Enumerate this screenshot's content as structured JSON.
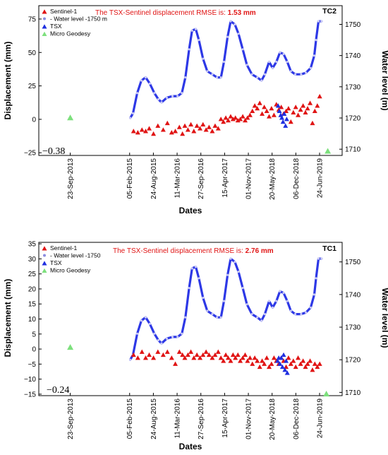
{
  "chart_data": [
    {
      "type": "scatter",
      "panel_label": "TC2",
      "rmse_prefix": "The TSX-Sentinel displacement RMSE is: ",
      "rmse_value": "1.53 mm",
      "offset_label": "−0.38",
      "xlabel": "Dates",
      "ylabel": "Displacement (mm)",
      "y2label": "Water level (m)",
      "xlim": [
        "2013-01-01",
        "2019-12-31"
      ],
      "ylim": [
        -27,
        85
      ],
      "y2lim": [
        1708,
        1756
      ],
      "yticks": [
        "−25",
        "0",
        "25",
        "50",
        "75"
      ],
      "y2ticks": [
        "1710",
        "1720",
        "1730",
        "1740",
        "1750"
      ],
      "xtick_dates": [
        "2013-09-23",
        "2015-02-05",
        "2015-08-24",
        "2016-03-11",
        "2016-09-27",
        "2017-04-15",
        "2017-11-01",
        "2018-05-20",
        "2018-12-06",
        "2019-06-24"
      ],
      "xtick_labels": [
        "23-Sep-2013",
        "05-Feb-2015",
        "24-Aug-2015",
        "11-Mar-2016",
        "27-Sep-2016",
        "15-Apr-2017",
        "01-Nov-2017",
        "20-May-2018",
        "06-Dec-2018",
        "24-Jun-2019"
      ],
      "legend": [
        {
          "label": "Sentinel-1",
          "color": "#e01414",
          "marker": "triangle"
        },
        {
          "label": "- Water level -1750 m",
          "color": "#8c8ce0",
          "marker": "circle"
        },
        {
          "label": "TSX",
          "color": "#1f2fe0",
          "marker": "triangle"
        },
        {
          "label": "Micro Geodesy",
          "color": "#7de07d",
          "marker": "triangle"
        }
      ],
      "water_level_curve": {
        "name": "Water level -1750 m",
        "axis": "right",
        "color": "#2d38e6",
        "points": [
          [
            "2015-02-10",
            1720
          ],
          [
            "2015-03-05",
            1721.5
          ],
          [
            "2015-04-10",
            1728
          ],
          [
            "2015-05-15",
            1732
          ],
          [
            "2015-06-20",
            1733
          ],
          [
            "2015-07-25",
            1731
          ],
          [
            "2015-09-01",
            1728
          ],
          [
            "2015-10-05",
            1726
          ],
          [
            "2015-11-01",
            1725
          ],
          [
            "2015-12-15",
            1726.5
          ],
          [
            "2016-02-01",
            1727
          ],
          [
            "2016-03-15",
            1727
          ],
          [
            "2016-04-20",
            1728
          ],
          [
            "2016-05-20",
            1733
          ],
          [
            "2016-06-20",
            1742
          ],
          [
            "2016-07-15",
            1748
          ],
          [
            "2016-08-15",
            1748.5
          ],
          [
            "2016-09-10",
            1745
          ],
          [
            "2016-10-15",
            1739
          ],
          [
            "2016-11-20",
            1735
          ],
          [
            "2017-01-01",
            1734
          ],
          [
            "2017-02-10",
            1733
          ],
          [
            "2017-03-15",
            1733
          ],
          [
            "2017-04-10",
            1738
          ],
          [
            "2017-05-10",
            1746
          ],
          [
            "2017-06-05",
            1751
          ],
          [
            "2017-07-10",
            1750
          ],
          [
            "2017-08-10",
            1747
          ],
          [
            "2017-09-15",
            1742
          ],
          [
            "2017-10-20",
            1737
          ],
          [
            "2017-12-01",
            1734
          ],
          [
            "2018-01-15",
            1733
          ],
          [
            "2018-02-20",
            1732
          ],
          [
            "2018-03-20",
            1734
          ],
          [
            "2018-04-25",
            1738
          ],
          [
            "2018-05-25",
            1736
          ],
          [
            "2018-06-25",
            1738
          ],
          [
            "2018-07-25",
            1741
          ],
          [
            "2018-08-25",
            1740.5
          ],
          [
            "2018-09-25",
            1738
          ],
          [
            "2018-10-25",
            1735
          ],
          [
            "2018-12-01",
            1734
          ],
          [
            "2019-01-20",
            1734
          ],
          [
            "2019-03-01",
            1734.5
          ],
          [
            "2019-04-10",
            1736
          ],
          [
            "2019-05-10",
            1740
          ],
          [
            "2019-05-25",
            1745
          ],
          [
            "2019-06-15",
            1751
          ],
          [
            "2019-07-10",
            1751
          ]
        ]
      },
      "sentinel1_points": [
        [
          "2015-03-10",
          -9
        ],
        [
          "2015-04-15",
          -10
        ],
        [
          "2015-05-20",
          -8
        ],
        [
          "2015-06-20",
          -9
        ],
        [
          "2015-07-20",
          -7
        ],
        [
          "2015-08-25",
          -11
        ],
        [
          "2015-10-01",
          -5
        ],
        [
          "2015-11-15",
          -8
        ],
        [
          "2015-12-20",
          -3
        ],
        [
          "2016-01-25",
          -10
        ],
        [
          "2016-02-25",
          -9
        ],
        [
          "2016-03-30",
          -6
        ],
        [
          "2016-04-25",
          -11
        ],
        [
          "2016-05-15",
          -5
        ],
        [
          "2016-06-10",
          -8
        ],
        [
          "2016-07-05",
          -4
        ],
        [
          "2016-07-30",
          -9
        ],
        [
          "2016-08-25",
          -5
        ],
        [
          "2016-09-20",
          -7
        ],
        [
          "2016-10-15",
          -4
        ],
        [
          "2016-11-10",
          -8
        ],
        [
          "2016-12-05",
          -6
        ],
        [
          "2017-01-01",
          -9
        ],
        [
          "2017-01-25",
          -5
        ],
        [
          "2017-02-20",
          -7
        ],
        [
          "2017-03-15",
          0
        ],
        [
          "2017-04-05",
          -2
        ],
        [
          "2017-04-25",
          1
        ],
        [
          "2017-05-15",
          -1
        ],
        [
          "2017-06-05",
          2
        ],
        [
          "2017-06-25",
          0
        ],
        [
          "2017-07-15",
          1
        ],
        [
          "2017-08-05",
          -1
        ],
        [
          "2017-08-25",
          0
        ],
        [
          "2017-09-15",
          2
        ],
        [
          "2017-10-05",
          -1
        ],
        [
          "2017-10-25",
          1
        ],
        [
          "2017-11-15",
          3
        ],
        [
          "2017-12-05",
          6
        ],
        [
          "2017-12-25",
          10
        ],
        [
          "2018-01-15",
          8
        ],
        [
          "2018-02-05",
          12
        ],
        [
          "2018-02-25",
          4
        ],
        [
          "2018-03-15",
          9
        ],
        [
          "2018-04-05",
          6
        ],
        [
          "2018-04-25",
          2
        ],
        [
          "2018-05-15",
          8
        ],
        [
          "2018-06-05",
          3
        ],
        [
          "2018-06-25",
          11
        ],
        [
          "2018-07-15",
          7
        ],
        [
          "2018-08-05",
          9
        ],
        [
          "2018-08-25",
          4
        ],
        [
          "2018-09-15",
          6
        ],
        [
          "2018-10-05",
          8
        ],
        [
          "2018-10-25",
          -2
        ],
        [
          "2018-11-15",
          5
        ],
        [
          "2018-12-05",
          9
        ],
        [
          "2018-12-25",
          3
        ],
        [
          "2019-01-15",
          7
        ],
        [
          "2019-02-05",
          10
        ],
        [
          "2019-02-25",
          5
        ],
        [
          "2019-03-15",
          8
        ],
        [
          "2019-04-05",
          12
        ],
        [
          "2019-04-25",
          -3
        ],
        [
          "2019-05-15",
          6
        ],
        [
          "2019-06-05",
          10
        ],
        [
          "2019-06-25",
          17
        ]
      ],
      "tsx_points": [
        [
          "2018-07-10",
          10
        ],
        [
          "2018-07-20",
          6
        ],
        [
          "2018-08-01",
          3
        ],
        [
          "2018-08-10",
          1
        ],
        [
          "2018-08-20",
          -2
        ],
        [
          "2018-08-30",
          4
        ],
        [
          "2018-09-10",
          -5
        ],
        [
          "2018-09-20",
          0
        ]
      ],
      "micro_geodesy_points": [
        [
          "2013-09-23",
          1
        ],
        [
          "2019-09-01",
          -24
        ]
      ]
    },
    {
      "type": "scatter",
      "panel_label": "TC1",
      "rmse_prefix": "The TSX-Sentinel displacement RMSE is: ",
      "rmse_value": "2.76 mm",
      "offset_label": "−0.24",
      "xlabel": "Dates",
      "ylabel": "Displacement (mm)",
      "y2label": "Water level (m)",
      "xlim": [
        "2013-01-01",
        "2019-12-31"
      ],
      "ylim": [
        -15.5,
        35.5
      ],
      "y2lim": [
        1709,
        1756
      ],
      "yticks": [
        "−15",
        "−10",
        "−5",
        "0",
        "5",
        "10",
        "15",
        "20",
        "25",
        "30",
        "35"
      ],
      "y2ticks": [
        "1710",
        "1720",
        "1730",
        "1740",
        "1750"
      ],
      "xtick_dates": [
        "2013-09-23",
        "2015-02-05",
        "2015-08-24",
        "2016-03-11",
        "2016-09-27",
        "2017-04-15",
        "2017-11-01",
        "2018-05-20",
        "2018-12-06",
        "2019-06-24"
      ],
      "xtick_labels": [
        "23-Sep-2013",
        "05-Feb-2015",
        "24-Aug-2015",
        "11-Mar-2016",
        "27-Sep-2016",
        "15-Apr-2017",
        "01-Nov-2017",
        "20-May-2018",
        "06-Dec-2018",
        "24-Jun-2019"
      ],
      "legend": [
        {
          "label": "Sentinel-1",
          "color": "#e01414",
          "marker": "triangle"
        },
        {
          "label": "- Water level -1750",
          "color": "#8c8ce0",
          "marker": "circle"
        },
        {
          "label": "TSX",
          "color": "#1f2fe0",
          "marker": "triangle"
        },
        {
          "label": "Micro Geodesy",
          "color": "#7de07d",
          "marker": "triangle"
        }
      ],
      "water_level_curve": {
        "name": "Water level -1750",
        "axis": "right",
        "color": "#2d38e6",
        "points": [
          [
            "2015-02-10",
            1720
          ],
          [
            "2015-03-05",
            1721.5
          ],
          [
            "2015-04-10",
            1728
          ],
          [
            "2015-05-15",
            1732
          ],
          [
            "2015-06-20",
            1733
          ],
          [
            "2015-07-25",
            1731
          ],
          [
            "2015-09-01",
            1728
          ],
          [
            "2015-10-05",
            1726
          ],
          [
            "2015-11-01",
            1725
          ],
          [
            "2015-12-15",
            1726.5
          ],
          [
            "2016-02-01",
            1727
          ],
          [
            "2016-03-15",
            1727
          ],
          [
            "2016-04-20",
            1728
          ],
          [
            "2016-05-20",
            1733
          ],
          [
            "2016-06-20",
            1742
          ],
          [
            "2016-07-15",
            1748
          ],
          [
            "2016-08-15",
            1748.5
          ],
          [
            "2016-09-10",
            1745
          ],
          [
            "2016-10-15",
            1739
          ],
          [
            "2016-11-20",
            1735
          ],
          [
            "2017-01-01",
            1734
          ],
          [
            "2017-02-10",
            1733
          ],
          [
            "2017-03-15",
            1733
          ],
          [
            "2017-04-10",
            1738
          ],
          [
            "2017-05-10",
            1746
          ],
          [
            "2017-06-05",
            1751
          ],
          [
            "2017-07-10",
            1750
          ],
          [
            "2017-08-10",
            1747
          ],
          [
            "2017-09-15",
            1742
          ],
          [
            "2017-10-20",
            1737
          ],
          [
            "2017-12-01",
            1734
          ],
          [
            "2018-01-15",
            1733
          ],
          [
            "2018-02-20",
            1732
          ],
          [
            "2018-03-20",
            1734
          ],
          [
            "2018-04-25",
            1738
          ],
          [
            "2018-05-25",
            1736
          ],
          [
            "2018-06-25",
            1738
          ],
          [
            "2018-07-25",
            1741
          ],
          [
            "2018-08-25",
            1740.5
          ],
          [
            "2018-09-25",
            1738
          ],
          [
            "2018-10-25",
            1735
          ],
          [
            "2018-12-01",
            1734
          ],
          [
            "2019-01-20",
            1734
          ],
          [
            "2019-03-01",
            1734.5
          ],
          [
            "2019-04-10",
            1736
          ],
          [
            "2019-05-10",
            1740
          ],
          [
            "2019-05-25",
            1745
          ],
          [
            "2019-06-15",
            1751
          ],
          [
            "2019-07-10",
            1751
          ]
        ]
      },
      "sentinel1_points": [
        [
          "2015-03-10",
          -2
        ],
        [
          "2015-04-15",
          -3
        ],
        [
          "2015-05-20",
          -1
        ],
        [
          "2015-06-20",
          -3
        ],
        [
          "2015-07-20",
          -2
        ],
        [
          "2015-08-25",
          -3
        ],
        [
          "2015-10-01",
          -1
        ],
        [
          "2015-11-15",
          -2
        ],
        [
          "2015-12-20",
          -1
        ],
        [
          "2016-01-25",
          -3
        ],
        [
          "2016-02-25",
          -5
        ],
        [
          "2016-03-30",
          -1
        ],
        [
          "2016-04-25",
          -2
        ],
        [
          "2016-05-15",
          -3
        ],
        [
          "2016-06-10",
          -2
        ],
        [
          "2016-07-05",
          -1
        ],
        [
          "2016-07-30",
          -3
        ],
        [
          "2016-08-25",
          -2
        ],
        [
          "2016-09-20",
          -3
        ],
        [
          "2016-10-15",
          -2
        ],
        [
          "2016-11-10",
          -1
        ],
        [
          "2016-12-05",
          -2
        ],
        [
          "2017-01-01",
          -3
        ],
        [
          "2017-01-25",
          -2
        ],
        [
          "2017-02-20",
          -1
        ],
        [
          "2017-03-15",
          -3
        ],
        [
          "2017-04-05",
          -4
        ],
        [
          "2017-04-25",
          -2
        ],
        [
          "2017-05-15",
          -3
        ],
        [
          "2017-06-05",
          -4
        ],
        [
          "2017-06-25",
          -2
        ],
        [
          "2017-07-15",
          -3
        ],
        [
          "2017-08-05",
          -2
        ],
        [
          "2017-08-25",
          -4
        ],
        [
          "2017-09-15",
          -3
        ],
        [
          "2017-10-05",
          -2
        ],
        [
          "2017-10-25",
          -4
        ],
        [
          "2017-11-15",
          -3
        ],
        [
          "2017-12-05",
          -5
        ],
        [
          "2017-12-25",
          -3
        ],
        [
          "2018-01-15",
          -4
        ],
        [
          "2018-02-05",
          -6
        ],
        [
          "2018-02-25",
          -4
        ],
        [
          "2018-03-15",
          -5
        ],
        [
          "2018-04-05",
          -3
        ],
        [
          "2018-04-25",
          -6
        ],
        [
          "2018-05-15",
          -5
        ],
        [
          "2018-06-05",
          -3
        ],
        [
          "2018-06-25",
          -4
        ],
        [
          "2018-07-15",
          -5
        ],
        [
          "2018-08-05",
          -3
        ],
        [
          "2018-08-25",
          -4
        ],
        [
          "2018-09-15",
          -6
        ],
        [
          "2018-10-05",
          -3
        ],
        [
          "2018-10-25",
          -5
        ],
        [
          "2018-11-15",
          -4
        ],
        [
          "2018-12-05",
          -6
        ],
        [
          "2018-12-25",
          -3
        ],
        [
          "2019-01-15",
          -5
        ],
        [
          "2019-02-05",
          -4
        ],
        [
          "2019-02-25",
          -6
        ],
        [
          "2019-03-15",
          -5
        ],
        [
          "2019-04-05",
          -4
        ],
        [
          "2019-04-25",
          -7
        ],
        [
          "2019-05-15",
          -5
        ],
        [
          "2019-06-05",
          -6
        ],
        [
          "2019-06-25",
          -5
        ]
      ],
      "tsx_points": [
        [
          "2018-07-05",
          -4
        ],
        [
          "2018-07-15",
          -3
        ],
        [
          "2018-07-25",
          -5
        ],
        [
          "2018-08-05",
          -3
        ],
        [
          "2018-08-15",
          -6
        ],
        [
          "2018-08-25",
          -2
        ],
        [
          "2018-09-05",
          -7
        ],
        [
          "2018-09-15",
          -4
        ],
        [
          "2018-09-25",
          -8
        ]
      ],
      "micro_geodesy_points": [
        [
          "2013-09-23",
          0.5
        ],
        [
          "2019-08-20",
          -15
        ]
      ]
    }
  ]
}
